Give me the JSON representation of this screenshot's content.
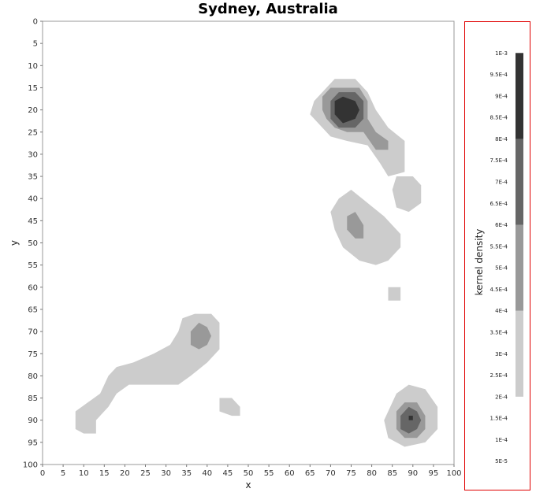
{
  "chart_data": {
    "type": "heatmap",
    "title": "Sydney, Australia",
    "xlabel": "x",
    "ylabel": "y",
    "xlim": [
      0,
      100
    ],
    "ylim": [
      0,
      100
    ],
    "y_axis_inverted": true,
    "x_ticks": [
      0,
      5,
      10,
      15,
      20,
      25,
      30,
      35,
      40,
      45,
      50,
      55,
      60,
      65,
      70,
      75,
      80,
      85,
      90,
      95,
      100
    ],
    "y_ticks": [
      0,
      5,
      10,
      15,
      20,
      25,
      30,
      35,
      40,
      45,
      50,
      55,
      60,
      65,
      70,
      75,
      80,
      85,
      90,
      95,
      100
    ],
    "grid": false,
    "colorbar": {
      "label": "kernel density",
      "ticks": [
        "1E-3",
        "9.5E-4",
        "9E-4",
        "8.5E-4",
        "8E-4",
        "7.5E-4",
        "7E-4",
        "6.5E-4",
        "6E-4",
        "5.5E-4",
        "5E-4",
        "4.5E-4",
        "4E-4",
        "3.5E-4",
        "3E-4",
        "2.5E-4",
        "2E-4",
        "1.5E-4",
        "1E-4",
        "5E-5"
      ],
      "bands": [
        {
          "from": 0.0002,
          "to": 0.0004,
          "color": "#cccccc"
        },
        {
          "from": 0.0004,
          "to": 0.0006,
          "color": "#999999"
        },
        {
          "from": 0.0006,
          "to": 0.0008,
          "color": "#666666"
        },
        {
          "from": 0.0008,
          "to": 0.001,
          "color": "#333333"
        }
      ]
    },
    "regions": [
      {
        "level": 1,
        "polygon": [
          [
            69,
            15
          ],
          [
            71,
            13
          ],
          [
            76,
            13
          ],
          [
            79,
            16
          ],
          [
            81,
            20
          ],
          [
            84,
            24
          ],
          [
            88,
            27
          ],
          [
            88,
            34
          ],
          [
            84,
            35
          ],
          [
            82,
            32
          ],
          [
            79,
            28
          ],
          [
            74,
            27
          ],
          [
            70,
            26
          ],
          [
            67,
            23
          ],
          [
            65,
            21
          ],
          [
            66,
            18
          ]
        ]
      },
      {
        "level": 1,
        "polygon": [
          [
            86,
            35
          ],
          [
            90,
            35
          ],
          [
            92,
            37
          ],
          [
            92,
            41
          ],
          [
            89,
            43
          ],
          [
            86,
            42
          ],
          [
            85,
            38
          ]
        ]
      },
      {
        "level": 1,
        "polygon": [
          [
            72,
            40
          ],
          [
            75,
            38
          ],
          [
            79,
            41
          ],
          [
            83,
            44
          ],
          [
            87,
            48
          ],
          [
            87,
            51
          ],
          [
            84,
            54
          ],
          [
            81,
            55
          ],
          [
            77,
            54
          ],
          [
            73,
            51
          ],
          [
            71,
            47
          ],
          [
            70,
            43
          ]
        ]
      },
      {
        "level": 1,
        "polygon": [
          [
            84,
            60
          ],
          [
            87,
            60
          ],
          [
            87,
            63
          ],
          [
            84,
            63
          ]
        ]
      },
      {
        "level": 1,
        "polygon": [
          [
            34,
            67
          ],
          [
            37,
            66
          ],
          [
            41,
            66
          ],
          [
            43,
            68
          ],
          [
            43,
            74
          ],
          [
            40,
            77
          ],
          [
            36,
            80
          ],
          [
            33,
            82
          ],
          [
            27,
            82
          ],
          [
            21,
            82
          ],
          [
            18,
            84
          ],
          [
            16,
            87
          ],
          [
            13,
            90
          ],
          [
            13,
            93
          ],
          [
            10,
            93
          ],
          [
            8,
            92
          ],
          [
            8,
            88
          ],
          [
            11,
            86
          ],
          [
            14,
            84
          ],
          [
            16,
            80
          ],
          [
            18,
            78
          ],
          [
            22,
            77
          ],
          [
            27,
            75
          ],
          [
            31,
            73
          ],
          [
            33,
            70
          ]
        ]
      },
      {
        "level": 1,
        "polygon": [
          [
            43,
            85
          ],
          [
            46,
            85
          ],
          [
            48,
            87
          ],
          [
            48,
            89
          ],
          [
            46,
            89
          ],
          [
            43,
            88
          ]
        ]
      },
      {
        "level": 1,
        "polygon": [
          [
            86,
            84
          ],
          [
            89,
            82
          ],
          [
            93,
            83
          ],
          [
            96,
            87
          ],
          [
            96,
            92
          ],
          [
            93,
            95
          ],
          [
            88,
            96
          ],
          [
            84,
            94
          ],
          [
            83,
            90
          ]
        ]
      },
      {
        "level": 2,
        "polygon": [
          [
            68,
            17
          ],
          [
            70,
            15
          ],
          [
            77,
            15
          ],
          [
            79,
            18
          ],
          [
            79,
            22
          ],
          [
            81,
            25
          ],
          [
            84,
            27
          ],
          [
            84,
            29
          ],
          [
            81,
            29
          ],
          [
            78,
            25
          ],
          [
            74,
            25
          ],
          [
            71,
            24
          ],
          [
            69,
            22
          ],
          [
            68,
            20
          ]
        ]
      },
      {
        "level": 2,
        "polygon": [
          [
            74,
            44
          ],
          [
            76,
            43
          ],
          [
            78,
            46
          ],
          [
            78,
            49
          ],
          [
            76,
            49
          ],
          [
            74,
            47
          ]
        ]
      },
      {
        "level": 2,
        "polygon": [
          [
            36,
            70
          ],
          [
            38,
            68
          ],
          [
            40,
            69
          ],
          [
            41,
            71
          ],
          [
            40,
            73
          ],
          [
            38,
            74
          ],
          [
            36,
            73
          ]
        ]
      },
      {
        "level": 2,
        "polygon": [
          [
            86,
            88
          ],
          [
            88,
            86
          ],
          [
            91,
            86
          ],
          [
            93,
            89
          ],
          [
            93,
            92
          ],
          [
            91,
            94
          ],
          [
            88,
            94
          ],
          [
            86,
            92
          ]
        ]
      },
      {
        "level": 3,
        "polygon": [
          [
            70,
            18
          ],
          [
            72,
            16
          ],
          [
            76,
            16
          ],
          [
            78,
            18
          ],
          [
            78,
            22
          ],
          [
            76,
            24
          ],
          [
            72,
            24
          ],
          [
            70,
            22
          ]
        ]
      },
      {
        "level": 3,
        "polygon": [
          [
            87,
            89
          ],
          [
            89,
            87
          ],
          [
            91,
            88
          ],
          [
            92,
            90
          ],
          [
            91,
            92
          ],
          [
            89,
            93
          ],
          [
            87,
            92
          ]
        ]
      },
      {
        "level": 4,
        "polygon": [
          [
            71,
            18
          ],
          [
            73,
            17
          ],
          [
            76,
            18
          ],
          [
            77,
            20
          ],
          [
            76,
            22
          ],
          [
            73,
            23
          ],
          [
            71,
            21
          ]
        ]
      },
      {
        "level": 4,
        "polygon": [
          [
            89,
            89
          ],
          [
            90,
            89
          ],
          [
            90,
            90
          ],
          [
            89,
            90
          ]
        ]
      }
    ]
  }
}
